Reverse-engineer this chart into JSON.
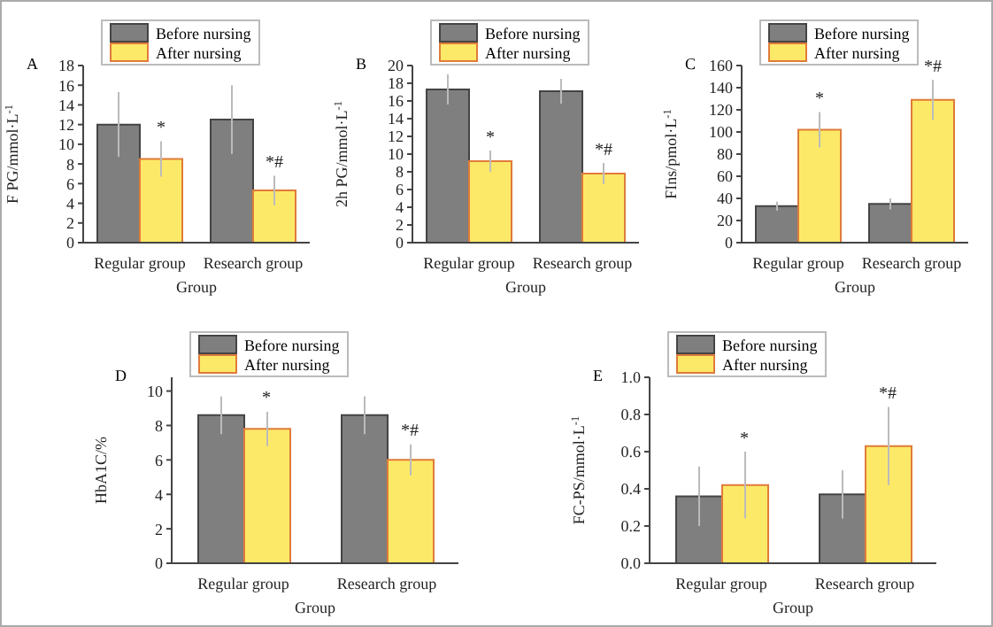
{
  "chart_data": [
    {
      "type": "bar",
      "title": "A",
      "xlabel": "Group",
      "ylabel": "F PG/mmol·L$^{-1}$",
      "categories": [
        "Regular group",
        "Research group"
      ],
      "series": [
        {
          "name": "Before nursing",
          "color": "#7f7f7f",
          "values": [
            12.0,
            12.5
          ],
          "errors": [
            3.3,
            3.5
          ]
        },
        {
          "name": "After nursing",
          "color": "#fde968",
          "values": [
            8.5,
            5.3
          ],
          "errors": [
            1.8,
            1.5
          ]
        }
      ],
      "ylim": [
        0,
        18
      ],
      "yticks": [
        0,
        2,
        4,
        6,
        8,
        10,
        12,
        14,
        16,
        18
      ],
      "legend": "top left",
      "grid": false,
      "annotations": [
        "*",
        "*#"
      ]
    },
    {
      "type": "bar",
      "title": "B",
      "xlabel": "Group",
      "ylabel": "2h PG/mmol·L$^{-1}$",
      "categories": [
        "Regular group",
        "Research group"
      ],
      "series": [
        {
          "name": "Before nursing",
          "color": "#7f7f7f",
          "values": [
            17.3,
            17.1
          ],
          "errors": [
            1.7,
            1.4
          ]
        },
        {
          "name": "After nursing",
          "color": "#fde968",
          "values": [
            9.2,
            7.8
          ],
          "errors": [
            1.2,
            1.2
          ]
        }
      ],
      "ylim": [
        0,
        20
      ],
      "yticks": [
        0,
        2,
        4,
        6,
        8,
        10,
        12,
        14,
        16,
        18,
        20
      ],
      "legend": "top left",
      "grid": false,
      "annotations": [
        "*",
        "*#"
      ]
    },
    {
      "type": "bar",
      "title": "C",
      "xlabel": "Group",
      "ylabel": "FIns/pmol·L$^{-1}$",
      "categories": [
        "Regular group",
        "Research group"
      ],
      "series": [
        {
          "name": "Before nursing",
          "color": "#7f7f7f",
          "values": [
            33,
            35
          ],
          "errors": [
            4,
            5
          ]
        },
        {
          "name": "After nursing",
          "color": "#fde968",
          "values": [
            102,
            129
          ],
          "errors": [
            16,
            18
          ]
        }
      ],
      "ylim": [
        0,
        160
      ],
      "yticks": [
        0,
        20,
        40,
        60,
        80,
        100,
        120,
        140,
        160
      ],
      "legend": "top left",
      "grid": false,
      "annotations": [
        "*",
        "*#"
      ]
    },
    {
      "type": "bar",
      "title": "D",
      "xlabel": "Group",
      "ylabel": "HbA1C/%",
      "categories": [
        "Regular group",
        "Research group"
      ],
      "series": [
        {
          "name": "Before nursing",
          "color": "#7f7f7f",
          "values": [
            8.6,
            8.6
          ],
          "errors": [
            1.1,
            1.1
          ]
        },
        {
          "name": "After nursing",
          "color": "#fde968",
          "values": [
            7.8,
            6.0
          ],
          "errors": [
            1.0,
            0.9
          ]
        }
      ],
      "ylim": [
        0,
        10.8
      ],
      "yticks": [
        0,
        2,
        4,
        6,
        8,
        10
      ],
      "legend": "top left",
      "grid": false,
      "annotations": [
        "*",
        "*#"
      ]
    },
    {
      "type": "bar",
      "title": "E",
      "xlabel": "Group",
      "ylabel": "FC-PS/mmol·L$^{-1}$",
      "categories": [
        "Regular group",
        "Research group"
      ],
      "series": [
        {
          "name": "Before nursing",
          "color": "#7f7f7f",
          "values": [
            0.36,
            0.37
          ],
          "errors": [
            0.16,
            0.13
          ]
        },
        {
          "name": "After nursing",
          "color": "#fde968",
          "values": [
            0.42,
            0.63
          ],
          "errors": [
            0.18,
            0.21
          ]
        }
      ],
      "ylim": [
        0,
        1.0
      ],
      "yticks": [
        {
          "value": 0,
          "label": "0.0"
        },
        0.2,
        0.4,
        0.6,
        0.8,
        {
          "value": 1,
          "label": "1.0"
        }
      ],
      "legend": "top left",
      "grid": false,
      "annotations": [
        "*",
        "*#"
      ]
    }
  ]
}
